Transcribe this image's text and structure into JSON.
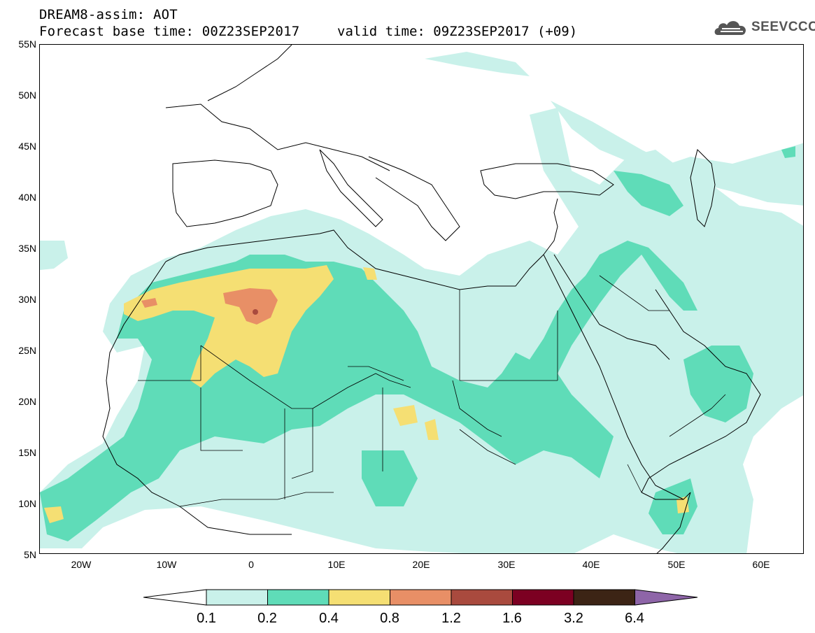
{
  "header": {
    "title_line1": "DREAM8-assim: AOT",
    "title_line2": "Forecast base time: 00Z23SEP2017",
    "valid_time": "valid time: 09Z23SEP2017 (+09)",
    "logo_text": "SEEVCCC"
  },
  "axes": {
    "lat_labels": [
      "55N",
      "50N",
      "45N",
      "40N",
      "35N",
      "30N",
      "25N",
      "20N",
      "15N",
      "10N",
      "5N"
    ],
    "lon_labels": [
      "20W",
      "10W",
      "0",
      "10E",
      "20E",
      "30E",
      "40E",
      "50E",
      "60E"
    ],
    "lat_range": [
      5,
      55
    ],
    "lon_range": [
      -25,
      65
    ]
  },
  "legend": {
    "levels": [
      "0.1",
      "0.2",
      "0.4",
      "0.8",
      "1.2",
      "1.6",
      "3.2",
      "6.4"
    ],
    "colors": [
      "#ffffff",
      "#c9f1ea",
      "#5fdcb8",
      "#f5df73",
      "#e88f66",
      "#a94a3e",
      "#7c0022",
      "#3c2415",
      "#8e65a8"
    ]
  },
  "colors": {
    "level_0_1": "#c9f1ea",
    "level_0_2": "#5fdcb8",
    "level_0_4": "#f5df73",
    "level_0_8": "#e88f66",
    "level_1_2": "#a94a3e"
  }
}
